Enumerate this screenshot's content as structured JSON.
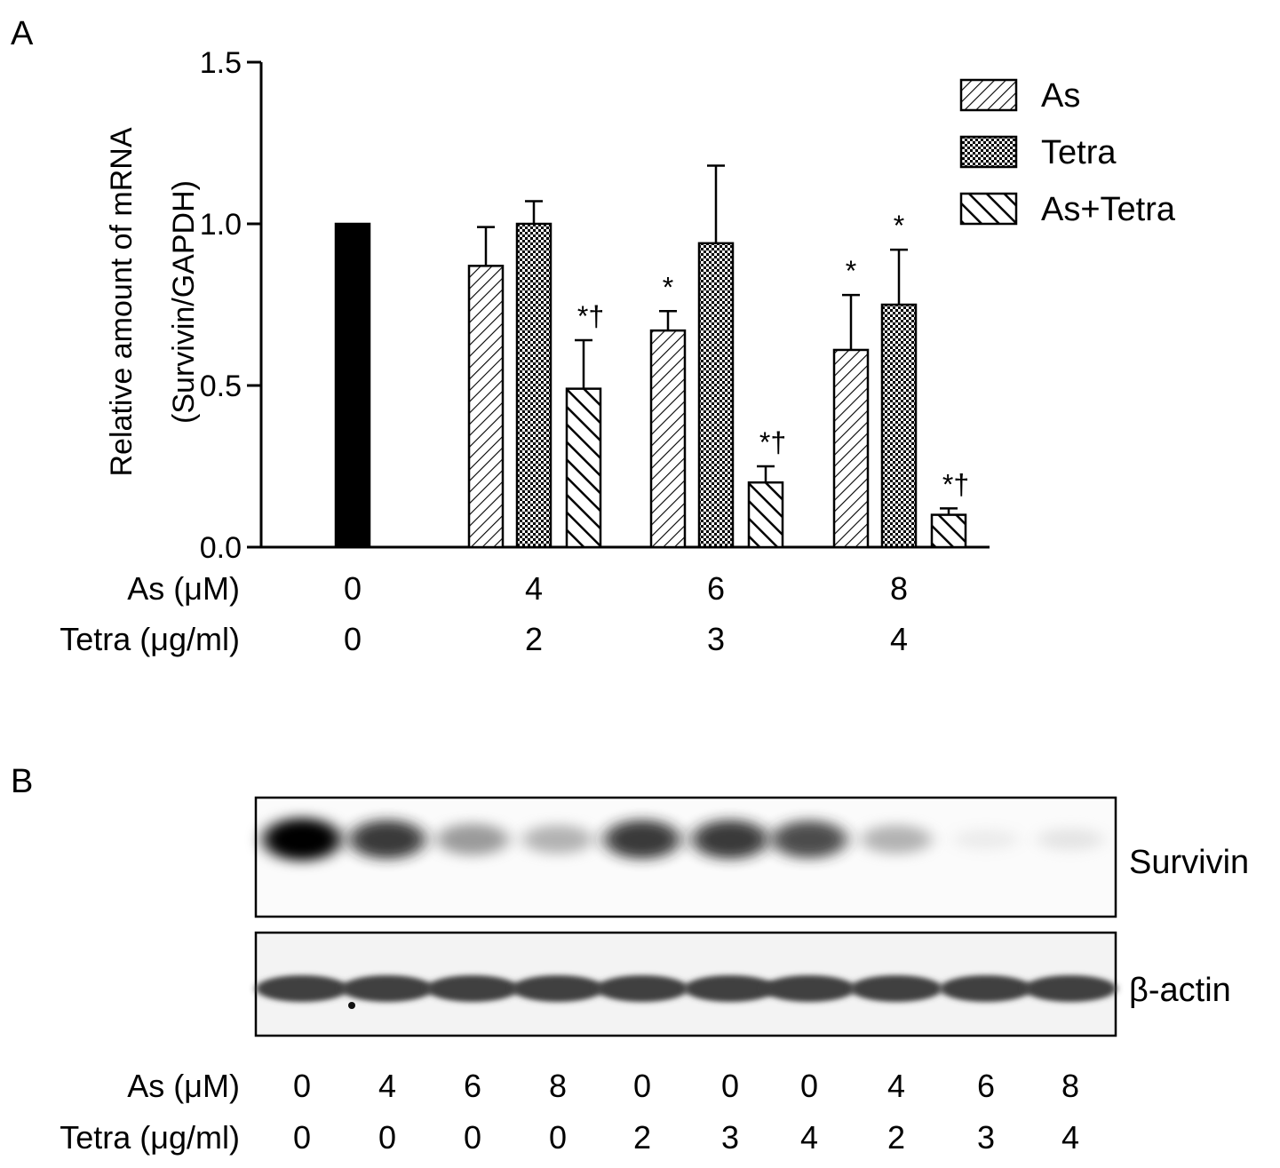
{
  "panel_a_label": "A",
  "panel_b_label": "B",
  "chart_data": {
    "type": "bar",
    "ylabel_line1": "Relative amount of mRNA",
    "ylabel_line2": "(Survivin/GAPDH)",
    "ylim": [
      0,
      1.5
    ],
    "yticks": [
      "0.0",
      "0.5",
      "1.0",
      "1.5"
    ],
    "grid": false,
    "legend_position": "top-right",
    "control": {
      "value": 1.0,
      "color": "#000000"
    },
    "series": [
      {
        "name": "As",
        "pattern": "diagonal-hatch",
        "values": [
          0.87,
          0.67,
          0.61
        ],
        "errors": [
          0.12,
          0.06,
          0.17
        ],
        "annotations": [
          "",
          "*",
          "*"
        ]
      },
      {
        "name": "Tetra",
        "pattern": "checkered",
        "values": [
          1.0,
          0.94,
          0.75
        ],
        "errors": [
          0.07,
          0.24,
          0.17
        ],
        "annotations": [
          "",
          "",
          "*"
        ]
      },
      {
        "name": "As+Tetra",
        "pattern": "bold-reverse-hatch",
        "values": [
          0.49,
          0.2,
          0.1
        ],
        "errors": [
          0.15,
          0.05,
          0.02
        ],
        "annotations": [
          "*†",
          "*†",
          "*†"
        ]
      }
    ],
    "xaxis_rows": [
      {
        "label": "As (μM)",
        "values": [
          "0",
          "4",
          "6",
          "8"
        ]
      },
      {
        "label": "Tetra (μg/ml)",
        "values": [
          "0",
          "2",
          "3",
          "4"
        ]
      }
    ]
  },
  "blot": {
    "bands": [
      "Survivin",
      "β-actin"
    ],
    "survivin_intensity": [
      1.0,
      0.85,
      0.55,
      0.45,
      0.85,
      0.85,
      0.8,
      0.45,
      0.12,
      0.18
    ],
    "actin_intensity": [
      0.8,
      0.8,
      0.8,
      0.8,
      0.8,
      0.8,
      0.8,
      0.8,
      0.8,
      0.8
    ],
    "rows": [
      {
        "label": "As (μM)",
        "values": [
          "0",
          "4",
          "6",
          "8",
          "0",
          "0",
          "0",
          "4",
          "6",
          "8"
        ]
      },
      {
        "label": "Tetra (μg/ml)",
        "values": [
          "0",
          "0",
          "0",
          "0",
          "2",
          "3",
          "4",
          "2",
          "3",
          "4"
        ]
      }
    ]
  }
}
